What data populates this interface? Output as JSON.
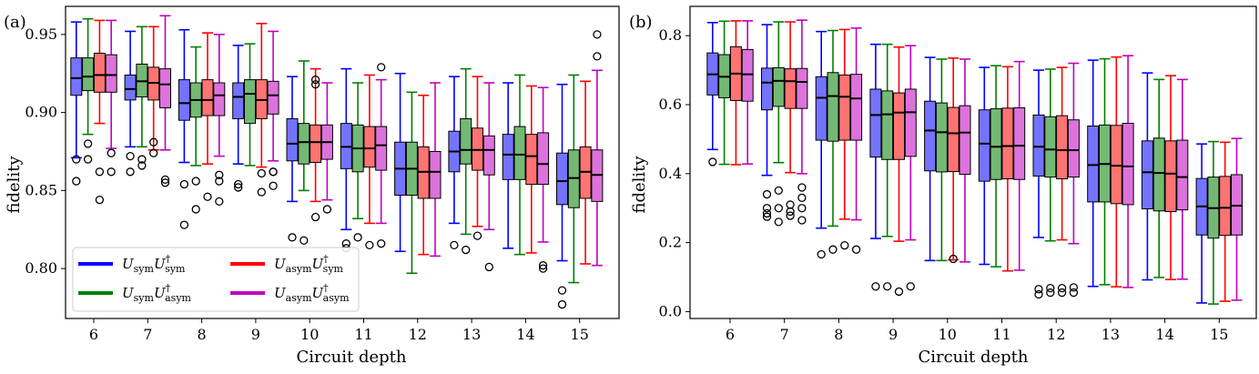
{
  "chart_data": [
    {
      "type": "box",
      "panel_label": "(a)",
      "xlabel": "Circuit depth",
      "ylabel": "fidelity",
      "categories": [
        "6",
        "7",
        "8",
        "9",
        "10",
        "11",
        "12",
        "13",
        "14",
        "15"
      ],
      "ylim": [
        0.768,
        0.968
      ],
      "yticks": [
        0.8,
        0.85,
        0.9,
        0.95
      ],
      "ytick_labels": [
        "0.80",
        "0.85",
        "0.90",
        "0.95"
      ],
      "legend_position": "lower-left",
      "series": [
        {
          "name": "U_sym U_sym^†",
          "color": "#0000ff",
          "boxes": [
            {
              "wlo": 0.871,
              "q1": 0.911,
              "med": 0.922,
              "q3": 0.935,
              "whi": 0.958,
              "out": [
                0.87,
                0.856
              ]
            },
            {
              "wlo": 0.878,
              "q1": 0.908,
              "med": 0.915,
              "q3": 0.924,
              "whi": 0.952,
              "out": [
                0.872,
                0.862
              ]
            },
            {
              "wlo": 0.868,
              "q1": 0.895,
              "med": 0.906,
              "q3": 0.921,
              "whi": 0.953,
              "out": [
                0.854,
                0.828
              ]
            },
            {
              "wlo": 0.867,
              "q1": 0.896,
              "med": 0.91,
              "q3": 0.919,
              "whi": 0.943,
              "out": [
                0.854,
                0.852
              ]
            },
            {
              "wlo": 0.843,
              "q1": 0.869,
              "med": 0.88,
              "q3": 0.896,
              "whi": 0.923,
              "out": [
                0.82
              ]
            },
            {
              "wlo": 0.825,
              "q1": 0.864,
              "med": 0.878,
              "q3": 0.893,
              "whi": 0.928,
              "out": [
                0.816,
                0.813
              ]
            },
            {
              "wlo": 0.811,
              "q1": 0.847,
              "med": 0.864,
              "q3": 0.881,
              "whi": 0.925,
              "out": []
            },
            {
              "wlo": 0.829,
              "q1": 0.862,
              "med": 0.875,
              "q3": 0.888,
              "whi": 0.923,
              "out": [
                0.815
              ]
            },
            {
              "wlo": 0.813,
              "q1": 0.857,
              "med": 0.873,
              "q3": 0.886,
              "whi": 0.919,
              "out": []
            },
            {
              "wlo": 0.805,
              "q1": 0.841,
              "med": 0.856,
              "q3": 0.874,
              "whi": 0.918,
              "out": [
                0.786,
                0.777
              ]
            }
          ]
        },
        {
          "name": "U_sym U_asym^†",
          "color": "#008000",
          "boxes": [
            {
              "wlo": 0.886,
              "q1": 0.914,
              "med": 0.923,
              "q3": 0.935,
              "whi": 0.96,
              "out": [
                0.88,
                0.87
              ]
            },
            {
              "wlo": 0.878,
              "q1": 0.91,
              "med": 0.92,
              "q3": 0.931,
              "whi": 0.955,
              "out": [
                0.87,
                0.866
              ]
            },
            {
              "wlo": 0.866,
              "q1": 0.897,
              "med": 0.908,
              "q3": 0.919,
              "whi": 0.942,
              "out": [
                0.856,
                0.838
              ]
            },
            {
              "wlo": 0.866,
              "q1": 0.893,
              "med": 0.912,
              "q3": 0.921,
              "whi": 0.944,
              "out": []
            },
            {
              "wlo": 0.85,
              "q1": 0.867,
              "med": 0.881,
              "q3": 0.893,
              "whi": 0.933,
              "out": [
                0.818
              ]
            },
            {
              "wlo": 0.832,
              "q1": 0.862,
              "med": 0.877,
              "q3": 0.892,
              "whi": 0.919,
              "out": [
                0.82
              ]
            },
            {
              "wlo": 0.797,
              "q1": 0.847,
              "med": 0.864,
              "q3": 0.881,
              "whi": 0.913,
              "out": []
            },
            {
              "wlo": 0.822,
              "q1": 0.867,
              "med": 0.876,
              "q3": 0.896,
              "whi": 0.928,
              "out": [
                0.812
              ]
            },
            {
              "wlo": 0.809,
              "q1": 0.857,
              "med": 0.873,
              "q3": 0.891,
              "whi": 0.924,
              "out": []
            },
            {
              "wlo": 0.791,
              "q1": 0.839,
              "med": 0.858,
              "q3": 0.876,
              "whi": 0.924,
              "out": []
            }
          ]
        },
        {
          "name": "U_asym U_sym^†",
          "color": "#ff0000",
          "boxes": [
            {
              "wlo": 0.893,
              "q1": 0.913,
              "med": 0.924,
              "q3": 0.938,
              "whi": 0.959,
              "out": [
                0.862,
                0.844
              ]
            },
            {
              "wlo": 0.876,
              "q1": 0.908,
              "med": 0.919,
              "q3": 0.929,
              "whi": 0.955,
              "out": [
                0.874,
                0.881
              ]
            },
            {
              "wlo": 0.867,
              "q1": 0.898,
              "med": 0.908,
              "q3": 0.921,
              "whi": 0.951,
              "out": [
                0.846
              ]
            },
            {
              "wlo": 0.865,
              "q1": 0.896,
              "med": 0.908,
              "q3": 0.921,
              "whi": 0.957,
              "out": [
                0.861,
                0.849
              ]
            },
            {
              "wlo": 0.843,
              "q1": 0.868,
              "med": 0.881,
              "q3": 0.892,
              "whi": 0.928,
              "out": [
                0.921,
                0.918,
                0.833
              ]
            },
            {
              "wlo": 0.829,
              "q1": 0.865,
              "med": 0.877,
              "q3": 0.891,
              "whi": 0.924,
              "out": [
                0.815
              ]
            },
            {
              "wlo": 0.809,
              "q1": 0.845,
              "med": 0.862,
              "q3": 0.878,
              "whi": 0.911,
              "out": []
            },
            {
              "wlo": 0.827,
              "q1": 0.863,
              "med": 0.876,
              "q3": 0.89,
              "whi": 0.923,
              "out": [
                0.821
              ]
            },
            {
              "wlo": 0.81,
              "q1": 0.854,
              "med": 0.872,
              "q3": 0.886,
              "whi": 0.917,
              "out": []
            },
            {
              "wlo": 0.803,
              "q1": 0.845,
              "med": 0.862,
              "q3": 0.878,
              "whi": 0.92,
              "out": []
            }
          ]
        },
        {
          "name": "U_asym U_asym^†",
          "color": "#bf00bf",
          "boxes": [
            {
              "wlo": 0.877,
              "q1": 0.913,
              "med": 0.924,
              "q3": 0.937,
              "whi": 0.959,
              "out": [
                0.862,
                0.874
              ]
            },
            {
              "wlo": 0.876,
              "q1": 0.903,
              "med": 0.918,
              "q3": 0.928,
              "whi": 0.962,
              "out": [
                0.857,
                0.855
              ]
            },
            {
              "wlo": 0.872,
              "q1": 0.898,
              "med": 0.911,
              "q3": 0.919,
              "whi": 0.95,
              "out": [
                0.86,
                0.856,
                0.843
              ]
            },
            {
              "wlo": 0.869,
              "q1": 0.899,
              "med": 0.911,
              "q3": 0.92,
              "whi": 0.952,
              "out": [
                0.862,
                0.862,
                0.853
              ]
            },
            {
              "wlo": 0.844,
              "q1": 0.87,
              "med": 0.881,
              "q3": 0.892,
              "whi": 0.919,
              "out": [
                0.838
              ]
            },
            {
              "wlo": 0.829,
              "q1": 0.863,
              "med": 0.879,
              "q3": 0.891,
              "whi": 0.921,
              "out": [
                0.929,
                0.816
              ]
            },
            {
              "wlo": 0.808,
              "q1": 0.845,
              "med": 0.862,
              "q3": 0.875,
              "whi": 0.919,
              "out": []
            },
            {
              "wlo": 0.825,
              "q1": 0.86,
              "med": 0.876,
              "q3": 0.885,
              "whi": 0.919,
              "out": [
                0.801
              ]
            },
            {
              "wlo": 0.817,
              "q1": 0.854,
              "med": 0.867,
              "q3": 0.887,
              "whi": 0.916,
              "out": [
                0.802,
                0.8
              ]
            },
            {
              "wlo": 0.802,
              "q1": 0.843,
              "med": 0.86,
              "q3": 0.876,
              "whi": 0.927,
              "out": [
                0.95,
                0.936
              ]
            }
          ]
        }
      ]
    },
    {
      "type": "box",
      "panel_label": "(b)",
      "xlabel": "Circuit depth",
      "ylabel": "fidelity",
      "categories": [
        "6",
        "7",
        "8",
        "9",
        "10",
        "11",
        "12",
        "13",
        "14",
        "15"
      ],
      "ylim": [
        -0.02,
        0.885
      ],
      "yticks": [
        0.0,
        0.2,
        0.4,
        0.6,
        0.8
      ],
      "ytick_labels": [
        "0.0",
        "0.2",
        "0.4",
        "0.6",
        "0.8"
      ],
      "series": [
        {
          "name": "U_sym U_sym^†",
          "color": "#0000ff",
          "boxes": [
            {
              "wlo": 0.47,
              "q1": 0.628,
              "med": 0.688,
              "q3": 0.75,
              "whi": 0.838,
              "out": [
                0.434
              ]
            },
            {
              "wlo": 0.395,
              "q1": 0.585,
              "med": 0.664,
              "q3": 0.706,
              "whi": 0.832,
              "out": [
                0.34,
                0.3,
                0.285,
                0.275
              ]
            },
            {
              "wlo": 0.242,
              "q1": 0.497,
              "med": 0.62,
              "q3": 0.681,
              "whi": 0.812,
              "out": [
                0.166
              ]
            },
            {
              "wlo": 0.212,
              "q1": 0.448,
              "med": 0.57,
              "q3": 0.645,
              "whi": 0.775,
              "out": [
                0.073
              ]
            },
            {
              "wlo": 0.148,
              "q1": 0.408,
              "med": 0.525,
              "q3": 0.61,
              "whi": 0.737,
              "out": []
            },
            {
              "wlo": 0.137,
              "q1": 0.378,
              "med": 0.487,
              "q3": 0.585,
              "whi": 0.708,
              "out": []
            },
            {
              "wlo": 0.215,
              "q1": 0.393,
              "med": 0.478,
              "q3": 0.57,
              "whi": 0.7,
              "out": [
                0.065,
                0.05
              ]
            },
            {
              "wlo": 0.073,
              "q1": 0.318,
              "med": 0.425,
              "q3": 0.538,
              "whi": 0.729,
              "out": []
            },
            {
              "wlo": 0.092,
              "q1": 0.298,
              "med": 0.404,
              "q3": 0.495,
              "whi": 0.692,
              "out": []
            },
            {
              "wlo": 0.025,
              "q1": 0.222,
              "med": 0.305,
              "q3": 0.386,
              "whi": 0.486,
              "out": []
            }
          ]
        },
        {
          "name": "U_sym U_asym^†",
          "color": "#008000",
          "boxes": [
            {
              "wlo": 0.427,
              "q1": 0.62,
              "med": 0.681,
              "q3": 0.745,
              "whi": 0.842,
              "out": []
            },
            {
              "wlo": 0.432,
              "q1": 0.595,
              "med": 0.669,
              "q3": 0.707,
              "whi": 0.84,
              "out": [
                0.351,
                0.3,
                0.26
              ]
            },
            {
              "wlo": 0.248,
              "q1": 0.494,
              "med": 0.625,
              "q3": 0.693,
              "whi": 0.815,
              "out": [
                0.18
              ]
            },
            {
              "wlo": 0.218,
              "q1": 0.441,
              "med": 0.572,
              "q3": 0.64,
              "whi": 0.775,
              "out": [
                0.073
              ]
            },
            {
              "wlo": 0.148,
              "q1": 0.405,
              "med": 0.52,
              "q3": 0.605,
              "whi": 0.732,
              "out": []
            },
            {
              "wlo": 0.13,
              "q1": 0.383,
              "med": 0.478,
              "q3": 0.588,
              "whi": 0.713,
              "out": []
            },
            {
              "wlo": 0.205,
              "q1": 0.39,
              "med": 0.47,
              "q3": 0.565,
              "whi": 0.703,
              "out": [
                0.068,
                0.055
              ]
            },
            {
              "wlo": 0.078,
              "q1": 0.318,
              "med": 0.428,
              "q3": 0.541,
              "whi": 0.733,
              "out": []
            },
            {
              "wlo": 0.099,
              "q1": 0.292,
              "med": 0.402,
              "q3": 0.503,
              "whi": 0.673,
              "out": []
            },
            {
              "wlo": 0.022,
              "q1": 0.213,
              "med": 0.3,
              "q3": 0.39,
              "whi": 0.493,
              "out": []
            }
          ]
        },
        {
          "name": "U_asym U_sym^†",
          "color": "#ff0000",
          "boxes": [
            {
              "wlo": 0.426,
              "q1": 0.612,
              "med": 0.69,
              "q3": 0.768,
              "whi": 0.843,
              "out": []
            },
            {
              "wlo": 0.403,
              "q1": 0.589,
              "med": 0.668,
              "q3": 0.704,
              "whi": 0.84,
              "out": [
                0.31,
                0.29,
                0.278
              ]
            },
            {
              "wlo": 0.268,
              "q1": 0.497,
              "med": 0.623,
              "q3": 0.686,
              "whi": 0.818,
              "out": [
                0.192
              ]
            },
            {
              "wlo": 0.204,
              "q1": 0.441,
              "med": 0.577,
              "q3": 0.634,
              "whi": 0.767,
              "out": [
                0.058
              ]
            },
            {
              "wlo": 0.15,
              "q1": 0.406,
              "med": 0.517,
              "q3": 0.592,
              "whi": 0.735,
              "out": [
                0.153
              ]
            },
            {
              "wlo": 0.118,
              "q1": 0.385,
              "med": 0.48,
              "q3": 0.59,
              "whi": 0.71,
              "out": []
            },
            {
              "wlo": 0.208,
              "q1": 0.385,
              "med": 0.468,
              "q3": 0.568,
              "whi": 0.708,
              "out": [
                0.068,
                0.055
              ]
            },
            {
              "wlo": 0.072,
              "q1": 0.313,
              "med": 0.423,
              "q3": 0.54,
              "whi": 0.738,
              "out": []
            },
            {
              "wlo": 0.093,
              "q1": 0.29,
              "med": 0.4,
              "q3": 0.495,
              "whi": 0.684,
              "out": []
            },
            {
              "wlo": 0.03,
              "q1": 0.221,
              "med": 0.301,
              "q3": 0.392,
              "whi": 0.491,
              "out": []
            }
          ]
        },
        {
          "name": "U_asym U_asym^†",
          "color": "#bf00bf",
          "boxes": [
            {
              "wlo": 0.428,
              "q1": 0.61,
              "med": 0.688,
              "q3": 0.76,
              "whi": 0.843,
              "out": []
            },
            {
              "wlo": 0.4,
              "q1": 0.589,
              "med": 0.666,
              "q3": 0.705,
              "whi": 0.845,
              "out": [
                0.36,
                0.33,
                0.3,
                0.265
              ]
            },
            {
              "wlo": 0.266,
              "q1": 0.497,
              "med": 0.618,
              "q3": 0.688,
              "whi": 0.822,
              "out": [
                0.18
              ]
            },
            {
              "wlo": 0.208,
              "q1": 0.45,
              "med": 0.578,
              "q3": 0.645,
              "whi": 0.771,
              "out": [
                0.073
              ]
            },
            {
              "wlo": 0.144,
              "q1": 0.398,
              "med": 0.519,
              "q3": 0.597,
              "whi": 0.732,
              "out": []
            },
            {
              "wlo": 0.12,
              "q1": 0.383,
              "med": 0.481,
              "q3": 0.591,
              "whi": 0.725,
              "out": []
            },
            {
              "wlo": 0.197,
              "q1": 0.39,
              "med": 0.468,
              "q3": 0.556,
              "whi": 0.72,
              "out": [
                0.07,
                0.055
              ]
            },
            {
              "wlo": 0.07,
              "q1": 0.31,
              "med": 0.421,
              "q3": 0.546,
              "whi": 0.742,
              "out": []
            },
            {
              "wlo": 0.094,
              "q1": 0.295,
              "med": 0.39,
              "q3": 0.497,
              "whi": 0.673,
              "out": []
            },
            {
              "wlo": 0.033,
              "q1": 0.222,
              "med": 0.307,
              "q3": 0.397,
              "whi": 0.502,
              "out": []
            }
          ]
        }
      ]
    }
  ]
}
